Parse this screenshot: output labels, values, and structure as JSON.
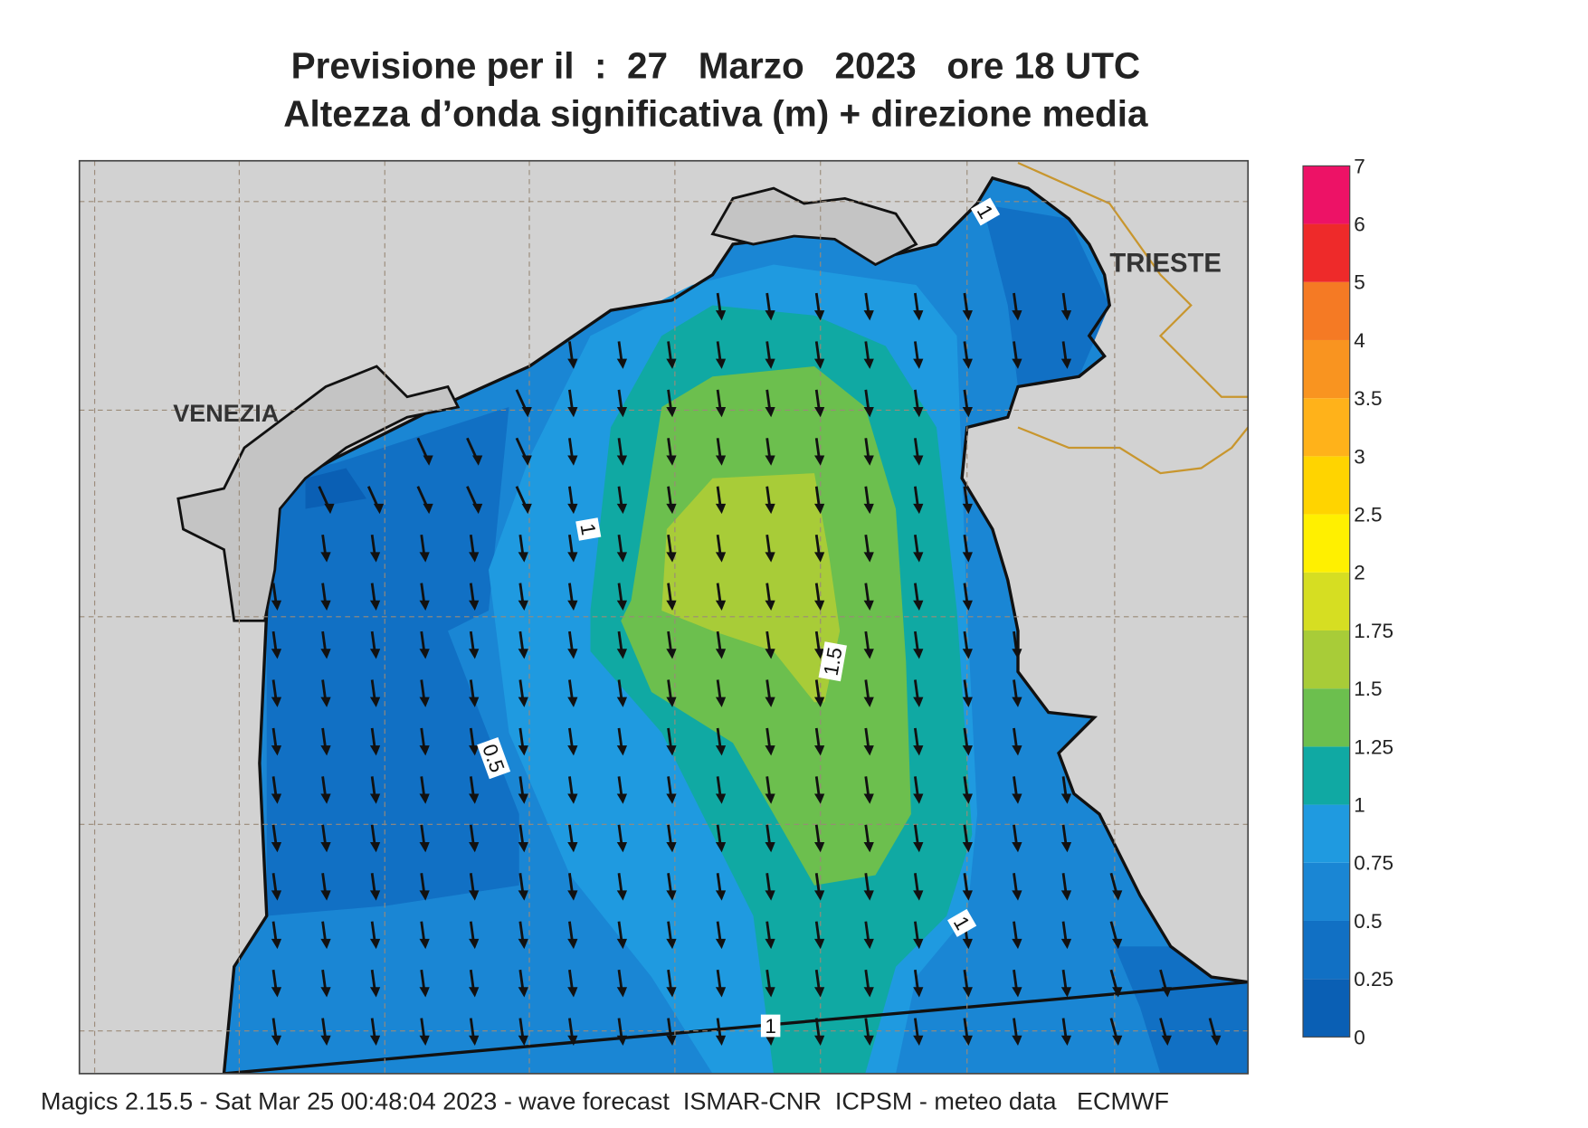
{
  "header": {
    "title_line1": "Previsione per il  :  27   Marzo   2023   ore 18 UTC",
    "title_line2": "Altezza d’onda significativa (m) + direzione media"
  },
  "map": {
    "places": [
      "VENEZIA",
      "TRIESTE"
    ],
    "contour_labels": [
      "1",
      "1",
      "0.5",
      "1.5",
      "1",
      "1"
    ]
  },
  "colorbar": {
    "ticks": [
      "0",
      "0.25",
      "0.5",
      "0.75",
      "1",
      "1.25",
      "1.5",
      "1.75",
      "2",
      "2.5",
      "3",
      "3.5",
      "4",
      "5",
      "6",
      "7"
    ],
    "colors": [
      "#0a5fb4",
      "#1170c4",
      "#1a86d4",
      "#1f9ae0",
      "#10a9a3",
      "#6cbf4e",
      "#a8cc38",
      "#d6de22",
      "#fff000",
      "#ffd400",
      "#ffb21a",
      "#f99420",
      "#f57a24",
      "#ee2a2a",
      "#ed1266"
    ]
  },
  "footer": "Magics 2.15.5 - Sat Mar 25 00:48:04 2023 - wave forecast  ISMAR-CNR  ICPSM - meteo data   ECMWF"
}
